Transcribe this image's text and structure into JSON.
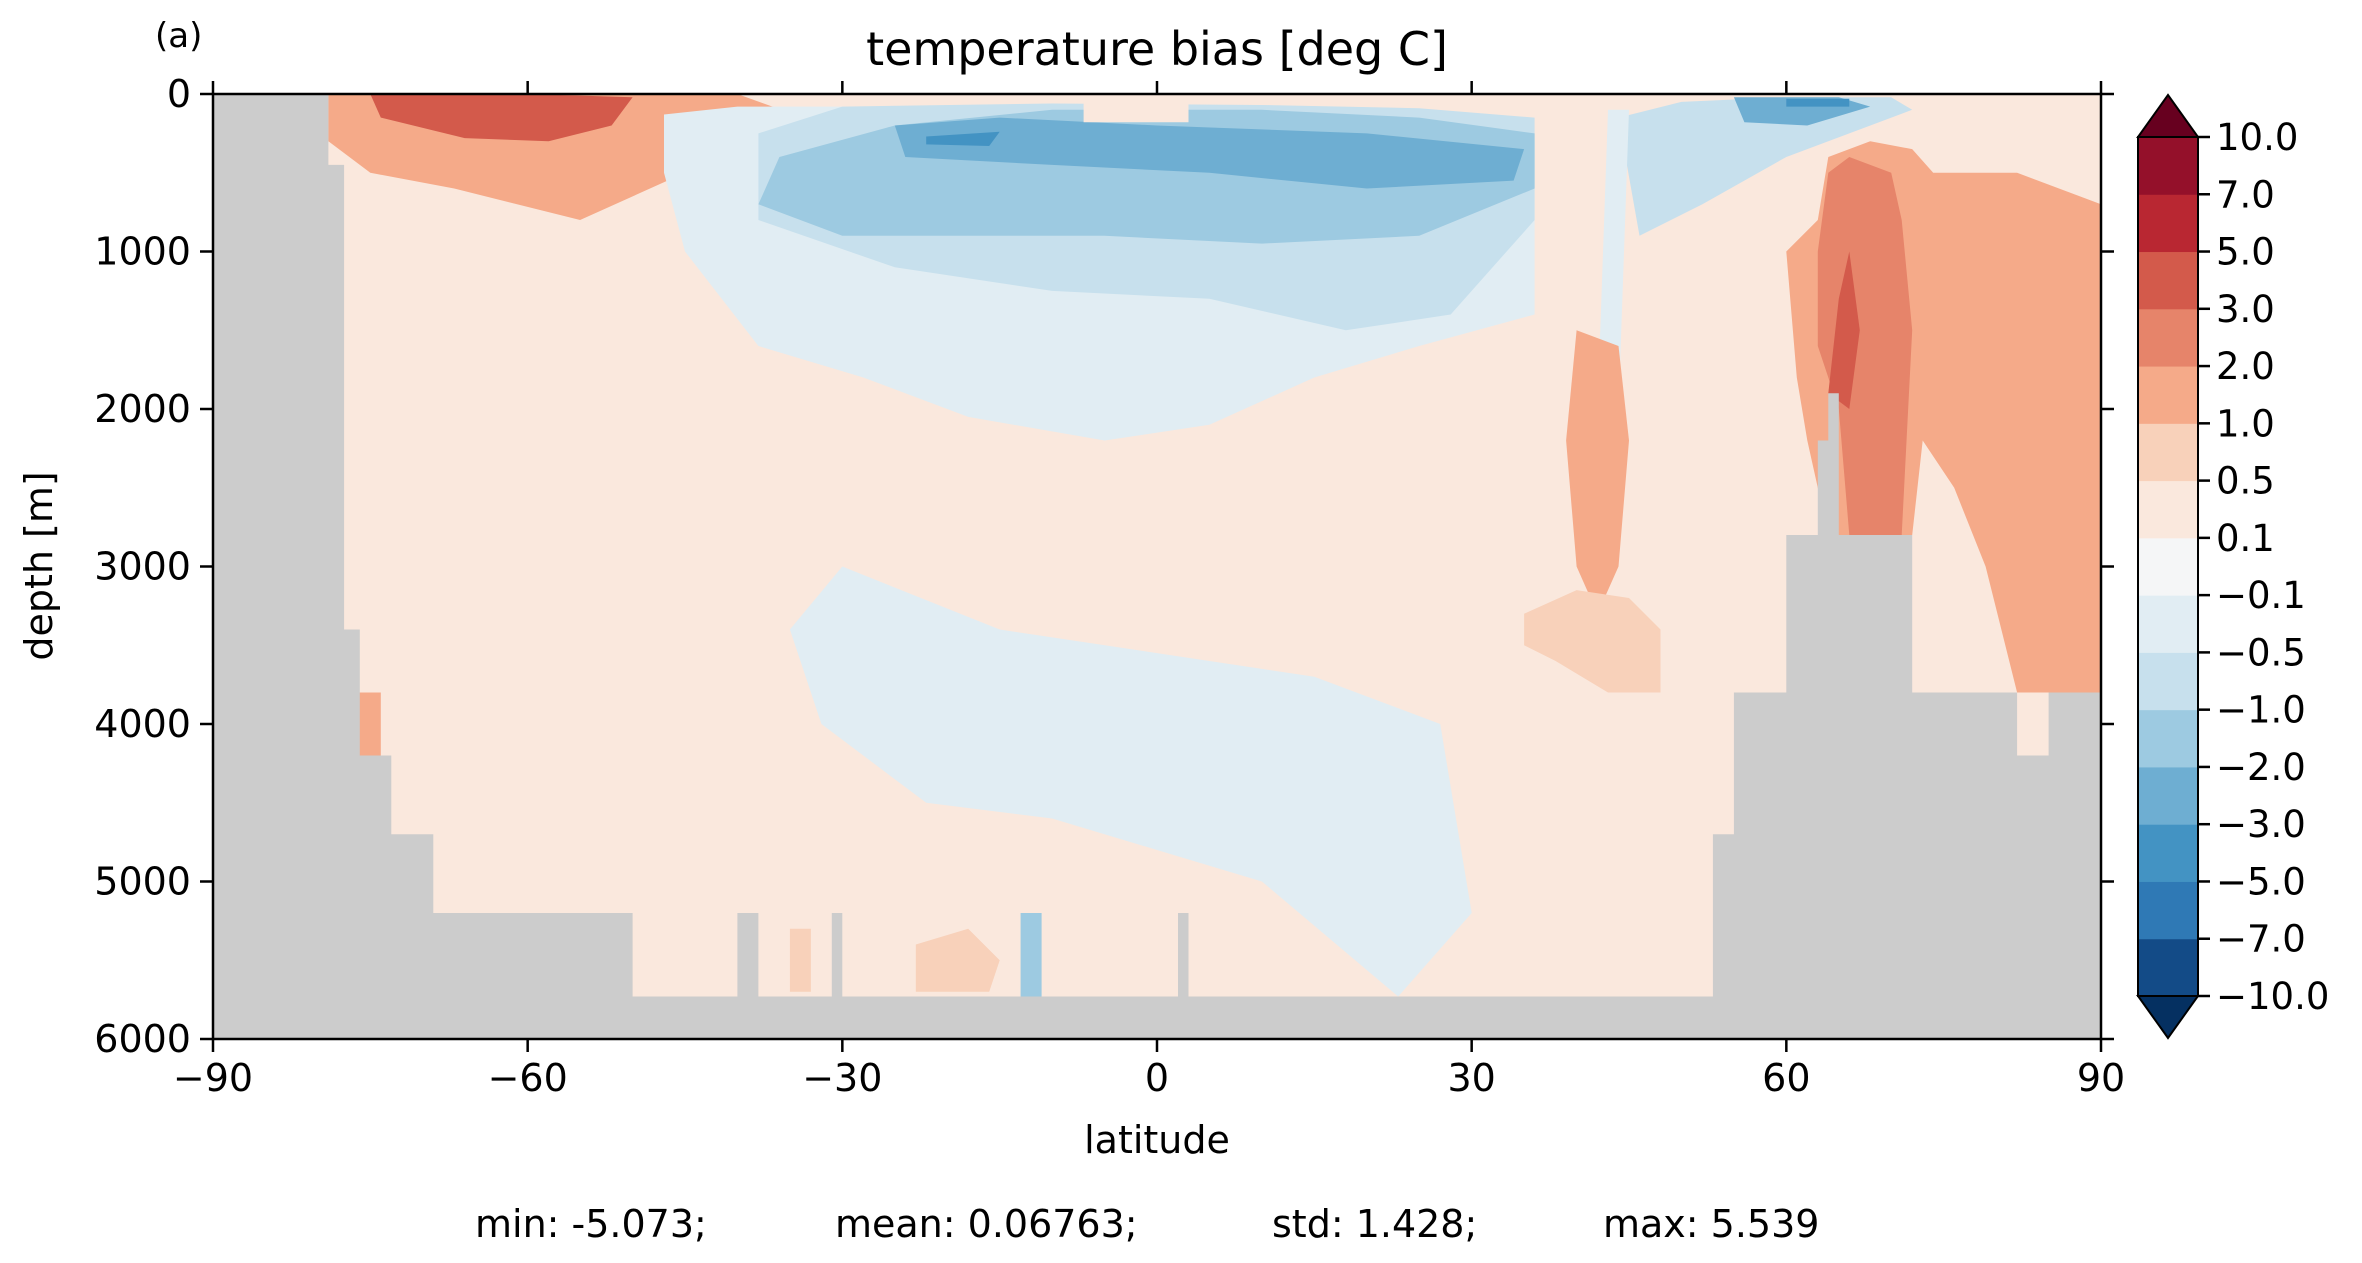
{
  "chart_data": {
    "type": "heatmap",
    "panel_label": "(a)",
    "title": "temperature bias [deg C]",
    "xlabel": "latitude",
    "ylabel": "depth [m]",
    "xlim": [
      -90,
      90
    ],
    "ylim": [
      6000,
      0
    ],
    "x_ticks": [
      -90,
      -60,
      -30,
      0,
      30,
      60,
      90
    ],
    "x_tick_labels": [
      "−90",
      "−60",
      "−30",
      "0",
      "30",
      "60",
      "90"
    ],
    "y_ticks": [
      0,
      1000,
      2000,
      3000,
      4000,
      5000,
      6000
    ],
    "y_tick_labels": [
      "0",
      "1000",
      "2000",
      "3000",
      "4000",
      "5000",
      "6000"
    ],
    "colorbar": {
      "levels": [
        -10.0,
        -7.0,
        -5.0,
        -3.0,
        -2.0,
        -1.0,
        -0.5,
        -0.1,
        0.1,
        0.5,
        1.0,
        2.0,
        3.0,
        5.0,
        7.0,
        10.0
      ],
      "tick_labels": [
        "−10.0",
        "−7.0",
        "−5.0",
        "−3.0",
        "−2.0",
        "−1.0",
        "−0.5",
        "−0.1",
        "0.1",
        "0.5",
        "1.0",
        "2.0",
        "3.0",
        "5.0",
        "7.0",
        "10.0"
      ],
      "colors": [
        "#053061",
        "#134b87",
        "#2f79b5",
        "#4393c3",
        "#6eaed2",
        "#9dcae1",
        "#c7e0ed",
        "#e1edf3",
        "#f5f6f7",
        "#fae8dd",
        "#f8d1ba",
        "#f5aa89",
        "#e6846a",
        "#d35a4b",
        "#b92732",
        "#94102a",
        "#67001f"
      ],
      "extend": "both"
    },
    "land_color": "#cccccc",
    "regions": [
      {
        "value": 1.5,
        "poly": [
          [
            -79,
            0
          ],
          [
            -60,
            0
          ],
          [
            -40,
            0
          ],
          [
            -35,
            120
          ],
          [
            -38,
            300
          ],
          [
            -45,
            500
          ],
          [
            -55,
            800
          ],
          [
            -67,
            600
          ],
          [
            -75,
            500
          ],
          [
            -79,
            300
          ]
        ]
      },
      {
        "value": 3.5,
        "poly": [
          [
            -75,
            0
          ],
          [
            -60,
            0
          ],
          [
            -50,
            20
          ],
          [
            -52,
            200
          ],
          [
            -58,
            300
          ],
          [
            -66,
            280
          ],
          [
            -74,
            150
          ]
        ]
      },
      {
        "value": 1.5,
        "poly": [
          [
            -77,
            3800
          ],
          [
            -74,
            3800
          ],
          [
            -74,
            4200
          ],
          [
            -77,
            4200
          ]
        ]
      },
      {
        "value": 1.5,
        "poly": [
          [
            -44,
            100
          ],
          [
            -45,
            300
          ],
          [
            -41,
            500
          ],
          [
            -36,
            600
          ]
        ]
      },
      {
        "value": -0.3,
        "poly": [
          [
            -47,
            130
          ],
          [
            -40,
            80
          ],
          [
            -25,
            80
          ],
          [
            -5,
            80
          ],
          [
            20,
            100
          ],
          [
            36,
            300
          ],
          [
            36,
            1400
          ],
          [
            25,
            1600
          ],
          [
            15,
            1800
          ],
          [
            5,
            2100
          ],
          [
            -5,
            2200
          ],
          [
            -18,
            2050
          ],
          [
            -28,
            1800
          ],
          [
            -38,
            1600
          ],
          [
            -45,
            1000
          ],
          [
            -47,
            500
          ]
        ]
      },
      {
        "value": -0.3,
        "poly": [
          [
            -30,
            3000
          ],
          [
            -15,
            3400
          ],
          [
            0,
            3550
          ],
          [
            15,
            3700
          ],
          [
            27,
            4000
          ],
          [
            30,
            5200
          ],
          [
            23,
            5730
          ],
          [
            10,
            5000
          ],
          [
            0,
            4800
          ],
          [
            -10,
            4600
          ],
          [
            -22,
            4500
          ],
          [
            -32,
            4000
          ],
          [
            -35,
            3400
          ]
        ]
      },
      {
        "value": -0.75,
        "poly": [
          [
            -38,
            250
          ],
          [
            -30,
            80
          ],
          [
            -10,
            60
          ],
          [
            10,
            70
          ],
          [
            25,
            90
          ],
          [
            36,
            150
          ],
          [
            36,
            800
          ],
          [
            28,
            1400
          ],
          [
            18,
            1500
          ],
          [
            5,
            1300
          ],
          [
            -10,
            1250
          ],
          [
            -25,
            1100
          ],
          [
            -38,
            800
          ]
        ]
      },
      {
        "value": -1.5,
        "poly": [
          [
            -36,
            400
          ],
          [
            -25,
            200
          ],
          [
            -10,
            100
          ],
          [
            10,
            100
          ],
          [
            25,
            150
          ],
          [
            36,
            250
          ],
          [
            36,
            600
          ],
          [
            25,
            900
          ],
          [
            10,
            950
          ],
          [
            -5,
            900
          ],
          [
            -20,
            900
          ],
          [
            -30,
            900
          ],
          [
            -38,
            700
          ]
        ]
      },
      {
        "value": -2.5,
        "poly": [
          [
            -25,
            200
          ],
          [
            -15,
            150
          ],
          [
            0,
            200
          ],
          [
            20,
            250
          ],
          [
            35,
            350
          ],
          [
            34,
            550
          ],
          [
            20,
            600
          ],
          [
            5,
            500
          ],
          [
            -10,
            450
          ],
          [
            -24,
            400
          ]
        ]
      },
      {
        "value": -4,
        "poly": [
          [
            -22,
            270
          ],
          [
            -15,
            240
          ],
          [
            -16,
            330
          ],
          [
            -22,
            320
          ]
        ]
      },
      {
        "value": 0.3,
        "poly": [
          [
            -7,
            50
          ],
          [
            3,
            50
          ],
          [
            3,
            180
          ],
          [
            -7,
            180
          ]
        ]
      },
      {
        "value": -1.5,
        "poly": [
          [
            -13,
            5200
          ],
          [
            -11,
            5200
          ],
          [
            -11,
            5730
          ],
          [
            -13,
            5730
          ]
        ]
      },
      {
        "value": -0.75,
        "poly": [
          [
            44,
            150
          ],
          [
            50,
            50
          ],
          [
            60,
            20
          ],
          [
            70,
            20
          ],
          [
            72,
            100
          ],
          [
            66,
            250
          ],
          [
            60,
            400
          ],
          [
            52,
            700
          ],
          [
            46,
            900
          ]
        ]
      },
      {
        "value": -2.5,
        "poly": [
          [
            55,
            20
          ],
          [
            65,
            20
          ],
          [
            68,
            80
          ],
          [
            62,
            200
          ],
          [
            56,
            180
          ]
        ]
      },
      {
        "value": -4,
        "poly": [
          [
            60,
            30
          ],
          [
            66,
            30
          ],
          [
            66,
            80
          ],
          [
            60,
            80
          ]
        ]
      },
      {
        "value": -0.3,
        "poly": [
          [
            43,
            100
          ],
          [
            45,
            100
          ],
          [
            44,
            2000
          ],
          [
            42,
            2000
          ]
        ]
      },
      {
        "value": 1.5,
        "poly": [
          [
            63,
            800
          ],
          [
            64,
            400
          ],
          [
            68,
            300
          ],
          [
            72,
            350
          ],
          [
            74,
            500
          ],
          [
            82,
            500
          ],
          [
            90,
            700
          ],
          [
            90,
            3800
          ],
          [
            82,
            3800
          ],
          [
            79,
            3000
          ],
          [
            76,
            2500
          ],
          [
            73,
            2200
          ],
          [
            72,
            2800
          ],
          [
            64,
            2800
          ],
          [
            62,
            2200
          ],
          [
            61,
            1800
          ],
          [
            60,
            1000
          ]
        ]
      },
      {
        "value": 2.5,
        "poly": [
          [
            63,
            1000
          ],
          [
            64,
            500
          ],
          [
            66,
            400
          ],
          [
            70,
            500
          ],
          [
            71,
            800
          ],
          [
            72,
            1500
          ],
          [
            71,
            2800
          ],
          [
            66,
            2800
          ],
          [
            65,
            2000
          ],
          [
            63,
            1600
          ]
        ]
      },
      {
        "value": 3.5,
        "poly": [
          [
            65,
            1300
          ],
          [
            66,
            1000
          ],
          [
            67,
            1500
          ],
          [
            66,
            2000
          ],
          [
            64,
            1900
          ]
        ]
      },
      {
        "value": 1.5,
        "poly": [
          [
            40,
            1500
          ],
          [
            44,
            1600
          ],
          [
            45,
            2200
          ],
          [
            44,
            3000
          ],
          [
            42,
            3300
          ],
          [
            40,
            3000
          ],
          [
            39,
            2200
          ]
        ]
      },
      {
        "value": 1.5,
        "poly": [
          [
            88,
            1500
          ],
          [
            90,
            1500
          ],
          [
            90,
            2000
          ],
          [
            88,
            2000
          ]
        ]
      },
      {
        "value": 0.75,
        "poly": [
          [
            35,
            3300
          ],
          [
            40,
            3150
          ],
          [
            45,
            3200
          ],
          [
            48,
            3400
          ],
          [
            48,
            3800
          ],
          [
            43,
            3800
          ],
          [
            38,
            3600
          ],
          [
            35,
            3500
          ]
        ]
      },
      {
        "value": 0.75,
        "poly": [
          [
            -35,
            5300
          ],
          [
            -33,
            5300
          ],
          [
            -33,
            5700
          ],
          [
            -35,
            5700
          ]
        ]
      },
      {
        "value": 0.75,
        "poly": [
          [
            -23,
            5400
          ],
          [
            -18,
            5300
          ],
          [
            -15,
            5500
          ],
          [
            -16,
            5700
          ],
          [
            -23,
            5700
          ]
        ]
      }
    ],
    "land": [
      [
        [
          -90,
          0
        ],
        [
          -79,
          0
        ],
        [
          -79,
          450
        ],
        [
          -77.5,
          450
        ],
        [
          -77.5,
          3400
        ],
        [
          -76,
          3400
        ],
        [
          -76,
          4200
        ],
        [
          -73,
          4200
        ],
        [
          -73,
          4700
        ],
        [
          -69,
          4700
        ],
        [
          -69,
          5200
        ],
        [
          -50,
          5200
        ],
        [
          -50,
          5730
        ],
        [
          53,
          5730
        ],
        [
          53,
          4700
        ],
        [
          55,
          4700
        ],
        [
          55,
          3800
        ],
        [
          60,
          3800
        ],
        [
          60,
          2800
        ],
        [
          63,
          2800
        ],
        [
          63,
          2200
        ],
        [
          64,
          2200
        ],
        [
          64,
          1900
        ],
        [
          65,
          1900
        ],
        [
          65,
          2800
        ],
        [
          72,
          2800
        ],
        [
          72,
          3800
        ],
        [
          82,
          3800
        ],
        [
          82,
          4200
        ],
        [
          85,
          4200
        ],
        [
          85,
          3800
        ],
        [
          90,
          3800
        ],
        [
          90,
          6000
        ],
        [
          -90,
          6000
        ]
      ],
      [
        [
          -40,
          5730
        ],
        [
          -40,
          5200
        ],
        [
          -38,
          5200
        ],
        [
          -38,
          5730
        ]
      ],
      [
        [
          -31,
          5730
        ],
        [
          -31,
          5200
        ],
        [
          -30,
          5200
        ],
        [
          -30,
          5730
        ]
      ],
      [
        [
          2,
          5730
        ],
        [
          2,
          5200
        ],
        [
          3,
          5200
        ],
        [
          3,
          5730
        ]
      ]
    ],
    "stats_text": [
      "min: -5.073;",
      "mean: 0.06763;",
      "std: 1.428;",
      "max: 5.539"
    ]
  }
}
